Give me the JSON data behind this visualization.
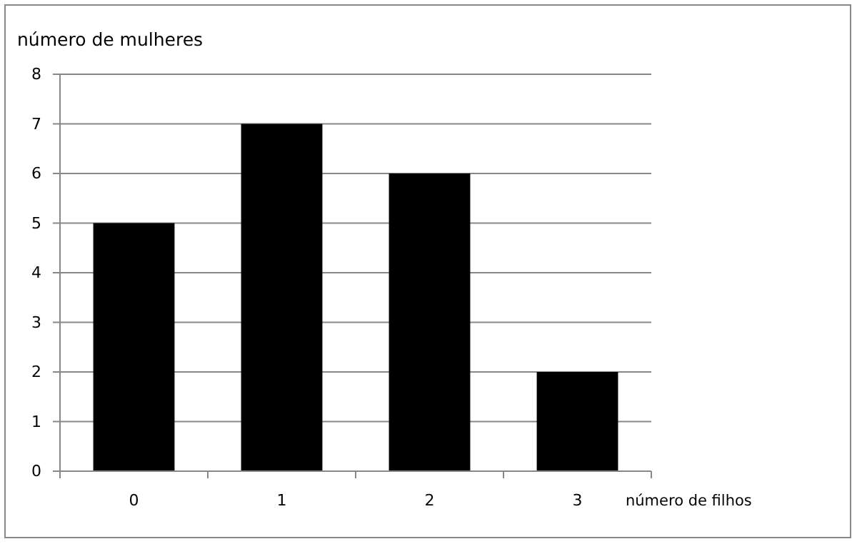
{
  "chart_data": {
    "type": "bar",
    "xlabel": "número de filhos",
    "ylabel": "número de mulheres",
    "categories": [
      "0",
      "1",
      "2",
      "3"
    ],
    "values": [
      5,
      7,
      6,
      2
    ],
    "color": "#000000",
    "ylim": [
      0,
      8
    ],
    "yticks": [
      0,
      1,
      2,
      3,
      4,
      5,
      6,
      7,
      8
    ],
    "grid": "y"
  }
}
